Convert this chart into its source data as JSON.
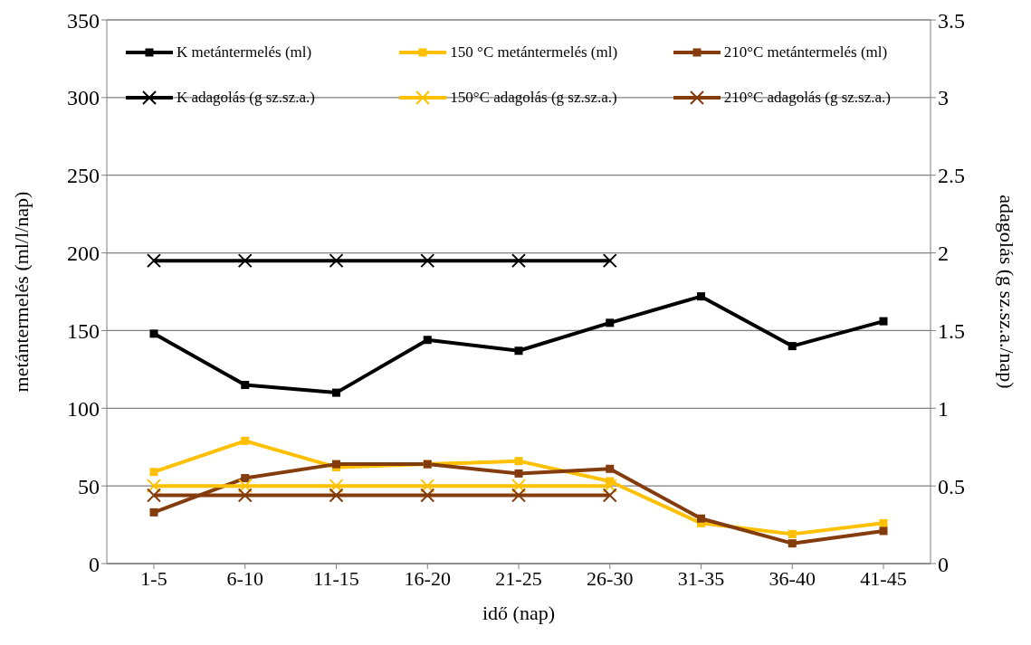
{
  "chart_data": {
    "type": "line",
    "xlabel": "idő (nap)",
    "ylabel": "metántermelés (ml/l/nap)",
    "y2label": "adagolás (g sz.sz.a./nap)",
    "categories": [
      "1-5",
      "6-10",
      "11-15",
      "16-20",
      "21-25",
      "26-30",
      "31-35",
      "36-40",
      "41-45"
    ],
    "series": [
      {
        "name": "K metántermelés (ml)",
        "color": "#000000",
        "marker": "square",
        "values": [
          148,
          115,
          110,
          144,
          137,
          155,
          172,
          140,
          156
        ]
      },
      {
        "name": "150 °C metántermelés (ml)",
        "color": "#ffc000",
        "marker": "square",
        "values": [
          59,
          79,
          62,
          64,
          66,
          53,
          26,
          19,
          26
        ]
      },
      {
        "name": "210°C metántermelés (ml)",
        "color": "#843c0c",
        "marker": "square",
        "values": [
          33,
          55,
          64,
          64,
          58,
          61,
          29,
          13,
          21
        ]
      },
      {
        "name": "K adagolás (g sz.sz.a.)",
        "color": "#000000",
        "marker": "cross",
        "axis": "y2",
        "values": [
          1.95,
          1.95,
          1.95,
          1.95,
          1.95,
          1.95,
          null,
          null,
          null
        ]
      },
      {
        "name": "150°C adagolás (g sz.sz.a.)",
        "color": "#ffc000",
        "marker": "cross",
        "axis": "y2",
        "values": [
          0.5,
          0.5,
          0.5,
          0.5,
          0.5,
          0.5,
          null,
          null,
          null
        ]
      },
      {
        "name": "210°C adagolás (g sz.sz.a.)",
        "color": "#843c0c",
        "marker": "cross",
        "axis": "y2",
        "values": [
          0.44,
          0.44,
          0.44,
          0.44,
          0.44,
          0.44,
          null,
          null,
          null
        ]
      }
    ],
    "ylim": [
      0,
      350
    ],
    "yticks": [
      0,
      50,
      100,
      150,
      200,
      250,
      300,
      350
    ],
    "y2lim": [
      0,
      3.5
    ],
    "y2ticks": [
      0,
      0.5,
      1,
      1.5,
      2,
      2.5,
      3,
      3.5
    ],
    "grid": "y",
    "legend": "top",
    "line_style": "solid"
  }
}
